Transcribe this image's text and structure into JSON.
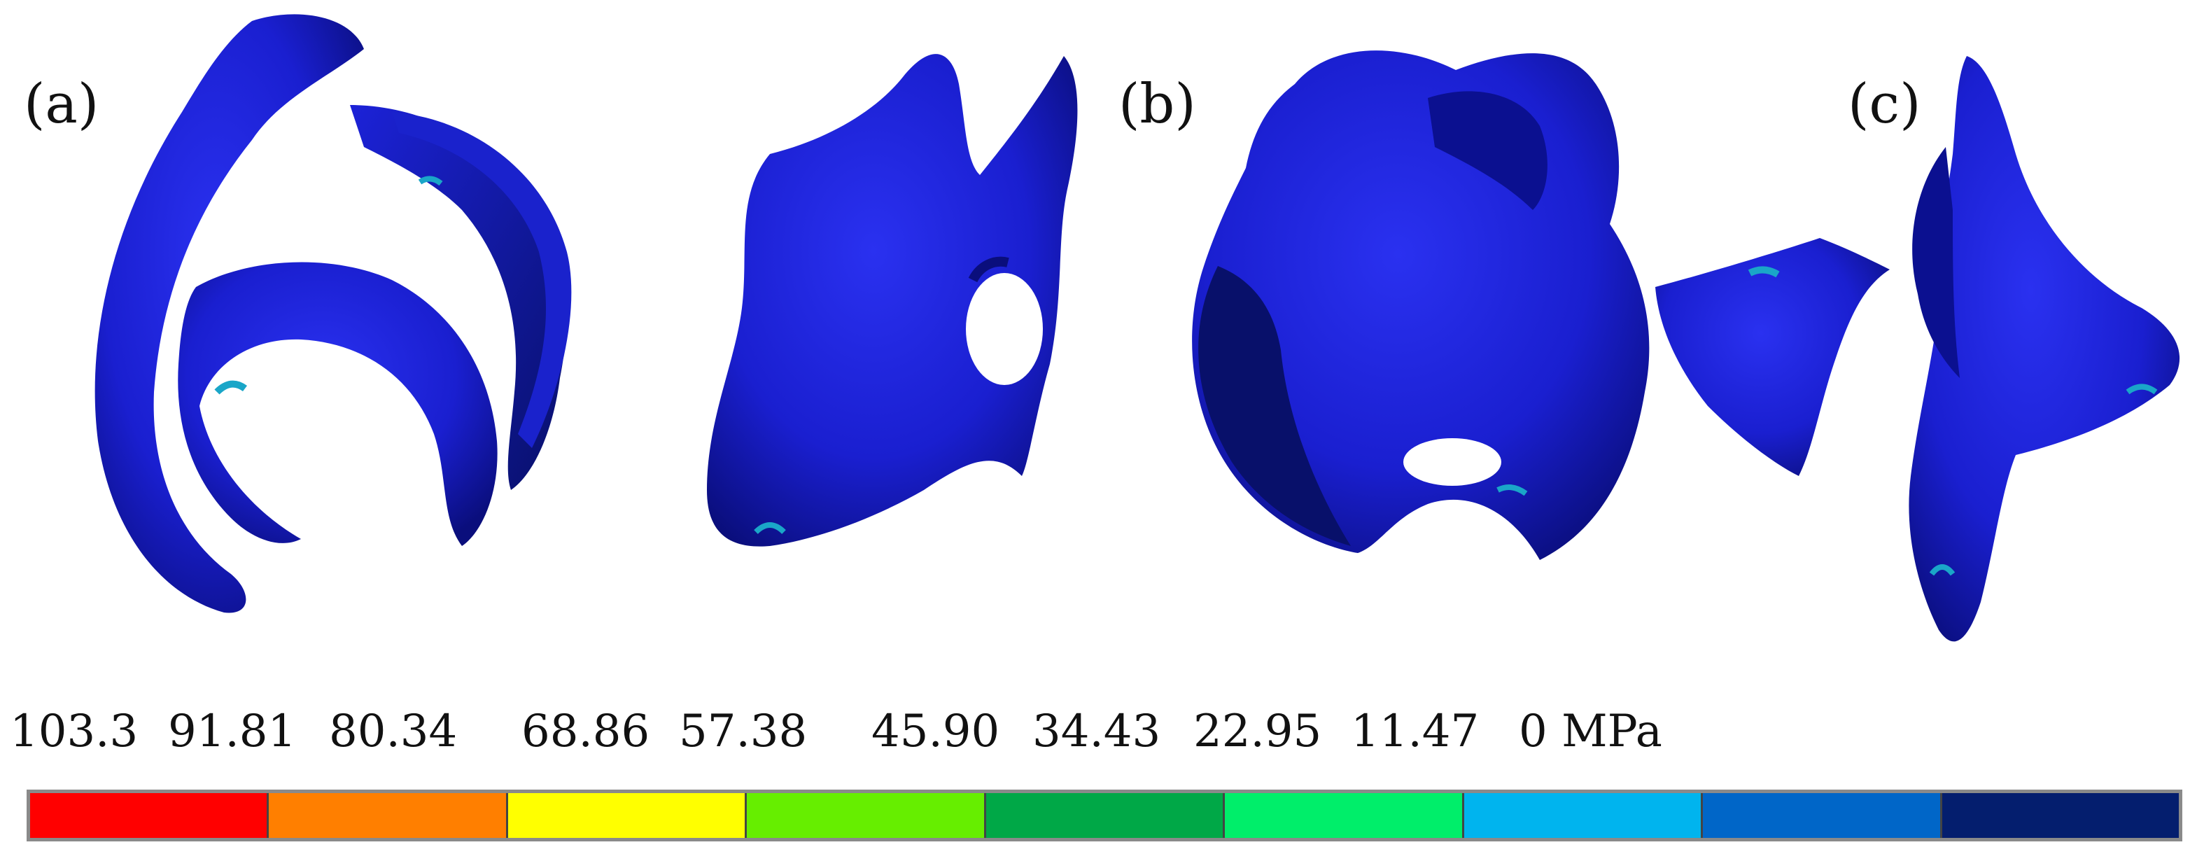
{
  "panels": {
    "a": "(a)",
    "b": "(b)",
    "c": "(c)"
  },
  "legend": {
    "tick_labels": [
      "103.3",
      "91.81",
      "80.34",
      "68.86",
      "57.38",
      "45.90",
      "34.43",
      "22.95",
      "11.47",
      "0 MPa"
    ],
    "colors": [
      "#ff0000",
      "#ff7f00",
      "#ffff00",
      "#66ee00",
      "#00a847",
      "#00ee6a",
      "#00b4ee",
      "#0066c8",
      "#041e6e"
    ]
  },
  "colors": {
    "model_blue": "#1a1fd6",
    "model_dark": "#0b0f8a",
    "hotspot": "#1aa6c8"
  }
}
